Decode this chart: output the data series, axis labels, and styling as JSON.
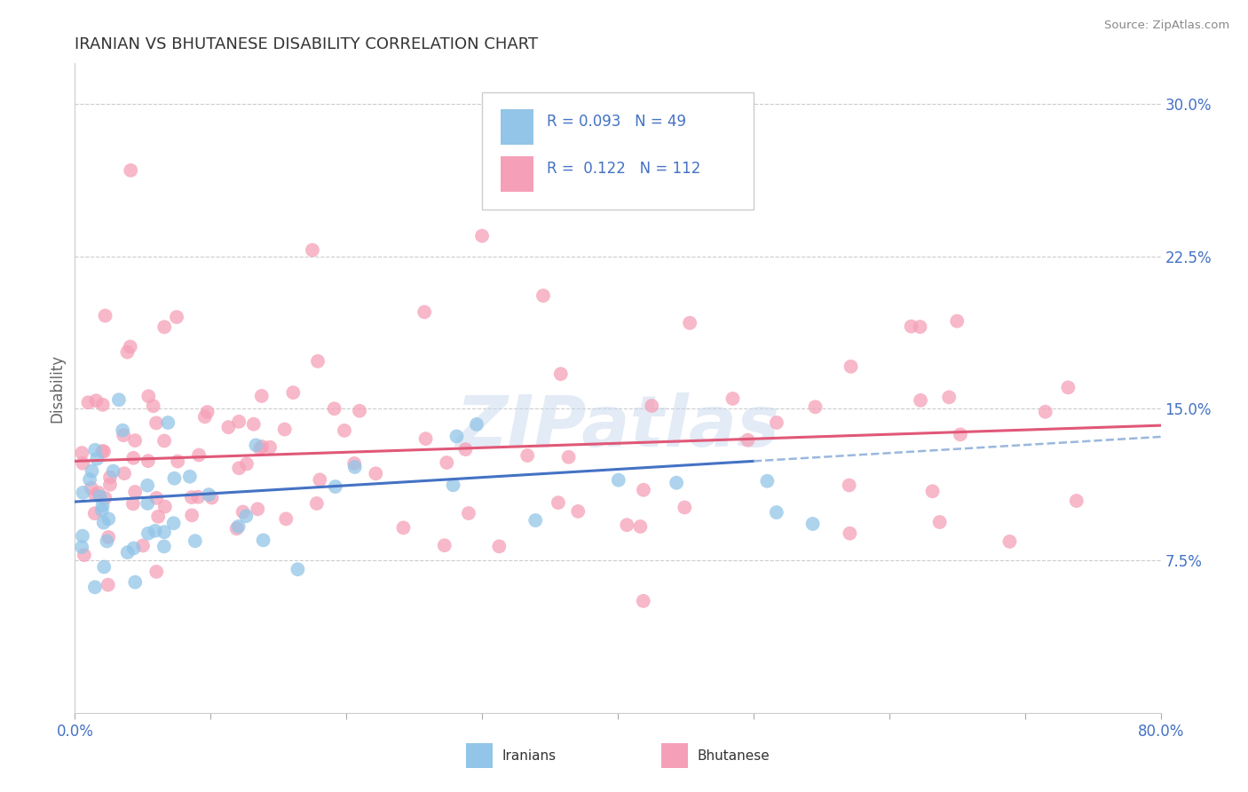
{
  "title": "IRANIAN VS BHUTANESE DISABILITY CORRELATION CHART",
  "source": "Source: ZipAtlas.com",
  "ylabel": "Disability",
  "xlim": [
    0.0,
    0.8
  ],
  "ylim": [
    0.0,
    0.32
  ],
  "yticks": [
    0.075,
    0.15,
    0.225,
    0.3
  ],
  "ytick_labels": [
    "7.5%",
    "15.0%",
    "22.5%",
    "30.0%"
  ],
  "R_iranian": 0.093,
  "N_iranian": 49,
  "R_bhutanese": 0.122,
  "N_bhutanese": 112,
  "color_iranian": "#92C5E8",
  "color_bhutanese": "#F5A0B8",
  "color_line_iranian": "#4472C4",
  "color_line_bhutanese": "#E05878",
  "color_line_iranian_dashed": "#9ab8dd",
  "axis_label_color": "#4472C4",
  "legend_text_color": "#4472C4",
  "title_color": "#333333"
}
